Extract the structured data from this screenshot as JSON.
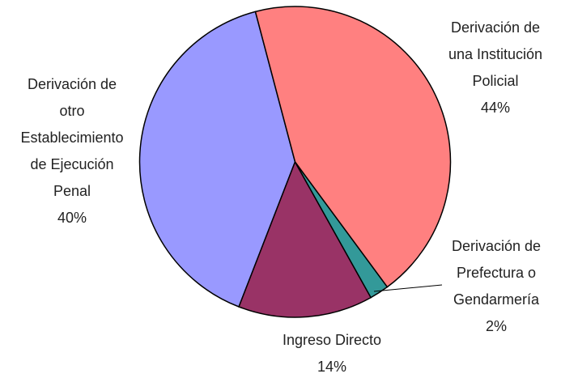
{
  "chart_data": {
    "type": "pie",
    "categories": [
      "Derivación de una Institución Policial",
      "Derivación de Prefectura o Gendarmería",
      "Ingreso Directo",
      "Derivación de otro Establecimiento de Ejecución Penal"
    ],
    "values": [
      44,
      2,
      14,
      40
    ],
    "value_labels": [
      "44%",
      "2%",
      "14%",
      "40%"
    ],
    "colors": [
      "#ff8080",
      "#339999",
      "#993366",
      "#9999ff"
    ]
  }
}
